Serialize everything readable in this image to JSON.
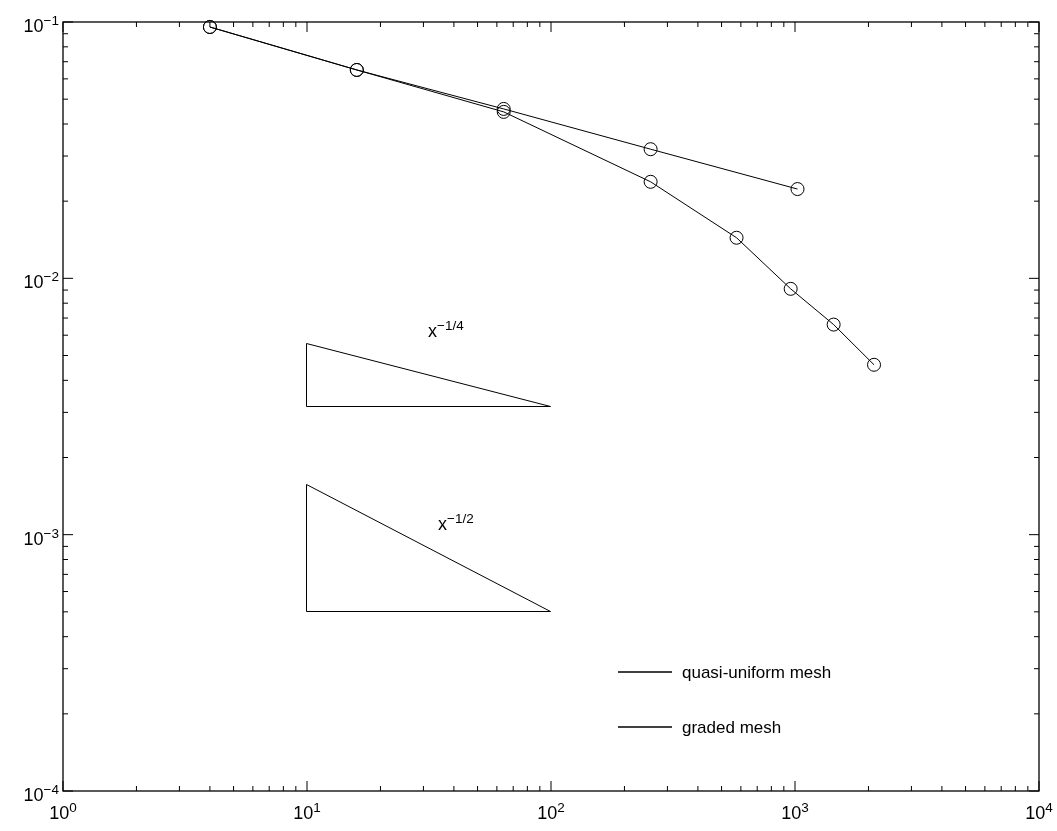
{
  "chart_data": {
    "type": "line",
    "log": "xy",
    "grid": false,
    "legend": "bottom right",
    "marker": "circle",
    "xlim": [
      1,
      10000
    ],
    "ylim": [
      0.0001,
      0.1
    ],
    "xticks": [
      {
        "value": 1,
        "label": "10$^{0}$"
      },
      {
        "value": 2,
        "label": null
      },
      {
        "value": 3,
        "label": null
      },
      {
        "value": 4,
        "label": null
      },
      {
        "value": 5,
        "label": null
      },
      {
        "value": 6,
        "label": null
      },
      {
        "value": 7,
        "label": null
      },
      {
        "value": 8,
        "label": null
      },
      {
        "value": 9,
        "label": null
      },
      {
        "value": 10,
        "label": "10$^{1}$"
      },
      {
        "value": 20,
        "label": null
      },
      {
        "value": 30,
        "label": null
      },
      {
        "value": 40,
        "label": null
      },
      {
        "value": 50,
        "label": null
      },
      {
        "value": 60,
        "label": null
      },
      {
        "value": 70,
        "label": null
      },
      {
        "value": 80,
        "label": null
      },
      {
        "value": 90,
        "label": null
      },
      {
        "value": 100,
        "label": "10$^{2}$"
      },
      {
        "value": 200,
        "label": null
      },
      {
        "value": 300,
        "label": null
      },
      {
        "value": 400,
        "label": null
      },
      {
        "value": 500,
        "label": null
      },
      {
        "value": 600,
        "label": null
      },
      {
        "value": 700,
        "label": null
      },
      {
        "value": 800,
        "label": null
      },
      {
        "value": 900,
        "label": null
      },
      {
        "value": 1000,
        "label": "10$^{3}$"
      },
      {
        "value": 2000,
        "label": null
      },
      {
        "value": 3000,
        "label": null
      },
      {
        "value": 4000,
        "label": null
      },
      {
        "value": 5000,
        "label": null
      },
      {
        "value": 6000,
        "label": null
      },
      {
        "value": 7000,
        "label": null
      },
      {
        "value": 8000,
        "label": null
      },
      {
        "value": 9000,
        "label": null
      },
      {
        "value": 10000,
        "label": "10$^{4}$"
      }
    ],
    "yticks": [
      {
        "value": 0.0001,
        "label": "10$^{−4}$"
      },
      {
        "value": 0.0002,
        "label": null
      },
      {
        "value": 0.0003,
        "label": null
      },
      {
        "value": 0.0004,
        "label": null
      },
      {
        "value": 0.0005,
        "label": null
      },
      {
        "value": 0.0006,
        "label": null
      },
      {
        "value": 0.0007,
        "label": null
      },
      {
        "value": 0.0008,
        "label": null
      },
      {
        "value": 0.0009,
        "label": null
      },
      {
        "value": 0.001,
        "label": "10$^{−3}$"
      },
      {
        "value": 0.002,
        "label": null
      },
      {
        "value": 0.003,
        "label": null
      },
      {
        "value": 0.004,
        "label": null
      },
      {
        "value": 0.005,
        "label": null
      },
      {
        "value": 0.006,
        "label": null
      },
      {
        "value": 0.007,
        "label": null
      },
      {
        "value": 0.008,
        "label": null
      },
      {
        "value": 0.009,
        "label": null
      },
      {
        "value": 0.01,
        "label": "10$^{−2}$"
      },
      {
        "value": 0.02,
        "label": null
      },
      {
        "value": 0.03,
        "label": null
      },
      {
        "value": 0.04,
        "label": null
      },
      {
        "value": 0.05,
        "label": null
      },
      {
        "value": 0.06,
        "label": null
      },
      {
        "value": 0.07,
        "label": null
      },
      {
        "value": 0.08,
        "label": null
      },
      {
        "value": 0.09,
        "label": null
      },
      {
        "value": 0.1,
        "label": "10$^{−1}$"
      }
    ],
    "series": [
      {
        "name": "quasi-uniform mesh",
        "color": "#000000",
        "x": [
          4,
          16,
          64,
          256,
          1024
        ],
        "values": [
          0.0956,
          0.065,
          0.0458,
          0.0319,
          0.0223
        ]
      },
      {
        "name": "graded mesh",
        "color": "#000000",
        "x": [
          4,
          16,
          64,
          256,
          576,
          960,
          1440,
          2108
        ],
        "values": [
          0.0956,
          0.065,
          0.0446,
          0.0238,
          0.0144,
          0.0091,
          0.0066,
          0.0046
        ]
      }
    ],
    "annotations": [
      "x$^{−1/4}$",
      "x$^{−1/2}$"
    ]
  }
}
